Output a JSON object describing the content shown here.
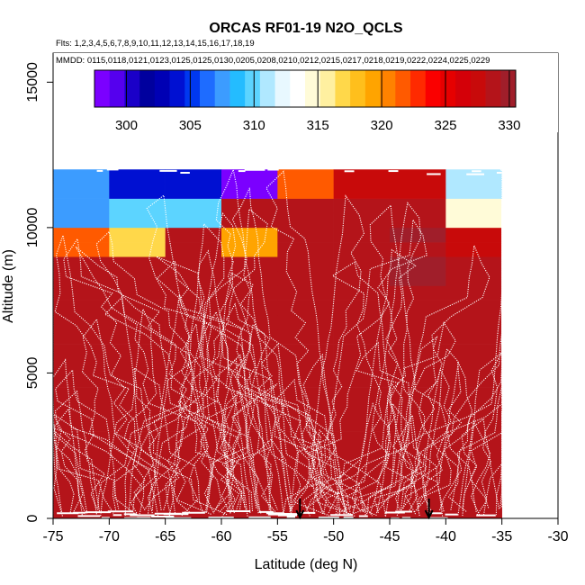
{
  "chart_data": {
    "type": "heatmap",
    "title": "ORCAS RF01-19 N2O_QCLS",
    "flights_label": "Flts: 1,2,3,4,5,6,7,8,9,10,11,12,13,14,15,16,17,18,19",
    "mmdd_label": "MMDD: 0115,0118,0121,0123,0125,0125,0130,0205,0208,0210,0212,0215,0217,0218,0219,0222,0224,0225,0229",
    "xlabel": "Latitude (deg N)",
    "ylabel": "Altitude (m)",
    "xlim": [
      -75,
      -30
    ],
    "ylim": [
      0,
      16000
    ],
    "x_ticks": [
      -75,
      -70,
      -65,
      -60,
      -55,
      -50,
      -45,
      -40,
      -35,
      -30
    ],
    "y_ticks": [
      0,
      5000,
      10000,
      15000
    ],
    "colorbar": {
      "min": 297.5,
      "max": 330.5,
      "ticks": [
        300,
        305,
        310,
        315,
        320,
        325,
        330
      ],
      "colors": [
        "#7b00ff",
        "#5500ee",
        "#1a00c8",
        "#00009e",
        "#0000b4",
        "#0010d2",
        "#0038f0",
        "#1e6cff",
        "#3c9cff",
        "#24bcff",
        "#5cd4ff",
        "#b0e8ff",
        "#e8f8ff",
        "#ffffff",
        "#fffbd8",
        "#fff0a0",
        "#ffd84a",
        "#ffbf1c",
        "#ffa400",
        "#ff8200",
        "#ff5a00",
        "#ff2a00",
        "#fa0000",
        "#e60000",
        "#d40008",
        "#c80a0a",
        "#b4141a",
        "#a01e2a"
      ]
    },
    "lat_edges": [
      -75,
      -70,
      -65,
      -60,
      -55,
      -50,
      -45,
      -40,
      -35
    ],
    "alt_edges": [
      0,
      500,
      1000,
      1500,
      2000,
      2500,
      3000,
      3500,
      4000,
      4500,
      5000,
      5500,
      6000,
      6500,
      7000,
      7500,
      8000,
      8500,
      9000,
      9500,
      10000,
      10500,
      11000,
      11500,
      12000
    ],
    "cell_values": [
      [
        328.6,
        328.6,
        328.7,
        328.7,
        328.6,
        328.6,
        328.7,
        328.8
      ],
      [
        328.6,
        328.7,
        328.6,
        328.7,
        328.7,
        328.6,
        328.7,
        328.8
      ],
      [
        328.5,
        328.6,
        328.7,
        328.7,
        328.6,
        328.6,
        328.7,
        328.7
      ],
      [
        328.6,
        328.6,
        328.5,
        328.7,
        328.7,
        328.7,
        328.6,
        328.7
      ],
      [
        328.6,
        328.5,
        328.6,
        328.6,
        328.7,
        328.6,
        328.6,
        328.7
      ],
      [
        328.6,
        328.6,
        328.6,
        328.7,
        328.6,
        328.7,
        328.6,
        328.8
      ],
      [
        328.6,
        328.6,
        328.6,
        328.6,
        328.7,
        328.6,
        328.7,
        328.7
      ],
      [
        328.7,
        328.6,
        328.7,
        328.6,
        328.6,
        328.6,
        328.6,
        328.7
      ],
      [
        328.6,
        328.7,
        328.6,
        328.6,
        328.7,
        328.7,
        328.6,
        328.7
      ],
      [
        328.6,
        328.6,
        328.6,
        328.6,
        328.6,
        328.6,
        328.7,
        328.7
      ],
      [
        328.7,
        328.6,
        328.7,
        328.6,
        328.7,
        328.6,
        328.6,
        328.8
      ],
      [
        328.6,
        328.7,
        328.6,
        328.7,
        328.6,
        328.7,
        328.7,
        328.7
      ],
      [
        328.7,
        328.6,
        328.6,
        328.6,
        328.6,
        328.6,
        328.6,
        328.7
      ],
      [
        328.7,
        328.6,
        328.7,
        328.6,
        328.6,
        328.6,
        328.7,
        328.6
      ],
      [
        328.6,
        328.6,
        328.6,
        328.6,
        328.7,
        328.6,
        328.6,
        328.5
      ],
      [
        328.7,
        328.6,
        328.7,
        328.7,
        328.6,
        328.7,
        328.6,
        328.6
      ],
      [
        328.8,
        328.6,
        328.5,
        328.7,
        328.7,
        328.6,
        329.4,
        328.3
      ],
      [
        328.8,
        328.7,
        328.6,
        328.6,
        328.8,
        328.5,
        329.6,
        328.6
      ],
      [
        322.0,
        317.3,
        328.6,
        319.2,
        328.8,
        328.4,
        329.0,
        327.5
      ],
      [
        322.0,
        317.3,
        328.6,
        319.2,
        328.6,
        329.0,
        329.4,
        327.5
      ],
      [
        308.0,
        309.7,
        309.5,
        328.6,
        329.0,
        328.6,
        329.3,
        314.5
      ],
      [
        308.0,
        309.7,
        309.5,
        328.6,
        329.2,
        328.8,
        329.0,
        314.5
      ],
      [
        307.2,
        303.6,
        303.7,
        296.0,
        322.0,
        327.5,
        327.2,
        311.3
      ],
      [
        307.2,
        303.6,
        303.7,
        296.0,
        322.0,
        327.5,
        327.2,
        311.3
      ]
    ],
    "arrow_latitudes": [
      -53,
      -41.5
    ]
  }
}
